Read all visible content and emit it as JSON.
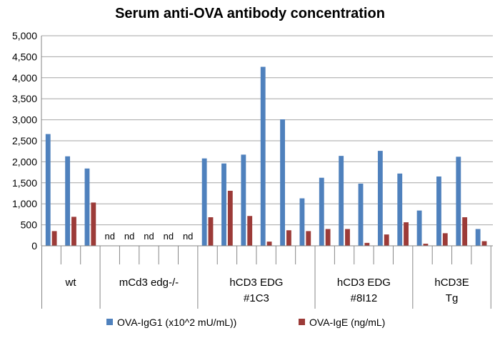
{
  "chart_data": {
    "type": "bar",
    "title": "Serum anti-OVA antibody concentration",
    "ylim": [
      0,
      5000
    ],
    "yticks": [
      0,
      500,
      1000,
      1500,
      2000,
      2500,
      3000,
      3500,
      4000,
      4500,
      5000
    ],
    "ytick_labels": [
      "0",
      "500",
      "1,000",
      "1,500",
      "2,000",
      "2,500",
      "3,000",
      "3,500",
      "4,000",
      "4,500",
      "5,000"
    ],
    "grid": true,
    "legend_position": "bottom",
    "groups": [
      {
        "name": "wt",
        "lines": [
          "wt"
        ],
        "count": 3
      },
      {
        "name": "mCd3 edg-/-",
        "lines": [
          "mCd3 edg-/-"
        ],
        "count": 5
      },
      {
        "name": "hCD3 EDG #1C3",
        "lines": [
          "hCD3 EDG",
          "#1C3"
        ],
        "count": 6
      },
      {
        "name": "hCD3 EDG #8I12",
        "lines": [
          "hCD3 EDG",
          "#8I12"
        ],
        "count": 5
      },
      {
        "name": "hCD3E Tg",
        "lines": [
          "hCD3E",
          "Tg"
        ],
        "count": 4
      }
    ],
    "series": [
      {
        "name": "OVA-IgG1 (x10^2 mU/mL))",
        "color": "#4f81bd",
        "values": [
          2660,
          2130,
          1840,
          null,
          null,
          null,
          null,
          null,
          2080,
          1960,
          2170,
          4260,
          3010,
          1130,
          1620,
          2140,
          1480,
          2260,
          1720,
          840,
          1650,
          2120,
          400
        ]
      },
      {
        "name": "OVA-IgE (ng/mL)",
        "color": "#9c3b38",
        "values": [
          350,
          690,
          1030,
          null,
          null,
          null,
          null,
          null,
          680,
          1310,
          710,
          100,
          370,
          350,
          400,
          400,
          70,
          270,
          560,
          50,
          300,
          680,
          110
        ]
      }
    ],
    "annotations": [
      "nd",
      "nd",
      "nd",
      "nd",
      "nd"
    ],
    "annotation_indices": [
      3,
      4,
      5,
      6,
      7
    ]
  }
}
